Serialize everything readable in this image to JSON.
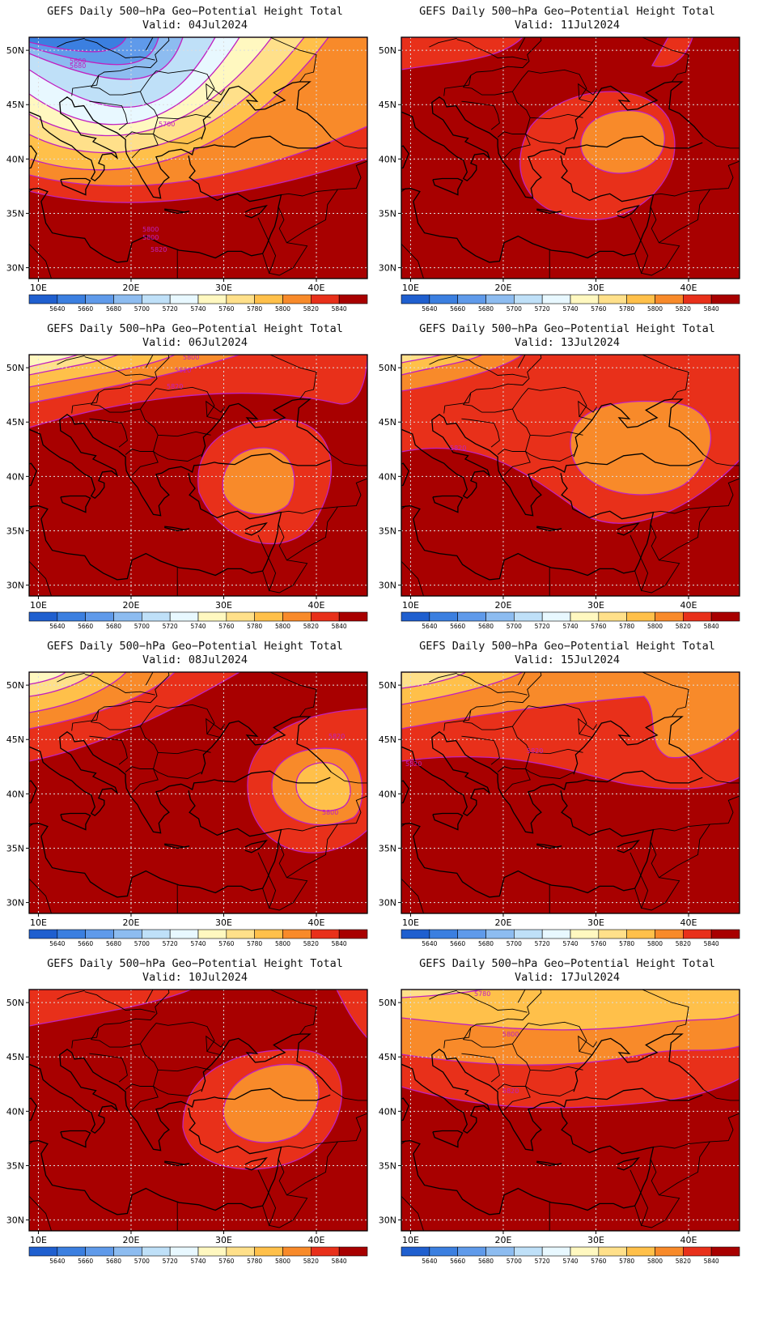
{
  "common": {
    "title": "GEFS Daily 500−hPa Geo−Potential Height Total",
    "lat_labels": [
      "50N",
      "45N",
      "40N",
      "35N",
      "30N"
    ],
    "lon_labels": [
      "10E",
      "20E",
      "30E",
      "40E"
    ],
    "colorbar": {
      "labels": [
        "5640",
        "5660",
        "5680",
        "5700",
        "5720",
        "5740",
        "5760",
        "5780",
        "5800",
        "5820",
        "5840"
      ],
      "colors": [
        "#1f5fcf",
        "#3b7fe0",
        "#5f9aea",
        "#8dbcf0",
        "#bfe0f8",
        "#e8f8ff",
        "#fff8c0",
        "#ffe08a",
        "#ffc04a",
        "#f88a2a",
        "#e8301a",
        "#a80000"
      ]
    },
    "contour_color": "#c020c0"
  },
  "panels": [
    {
      "valid": "Valid: 04Jul2024",
      "labels": [
        "5660",
        "5680",
        "5700",
        "5800",
        "5800",
        "5820"
      ]
    },
    {
      "valid": "Valid: 11Jul2024",
      "labels": []
    },
    {
      "valid": "Valid: 06Jul2024",
      "labels": [
        "5800",
        "5820",
        "5820"
      ]
    },
    {
      "valid": "Valid: 13Jul2024",
      "labels": [
        "5820"
      ]
    },
    {
      "valid": "Valid: 08Jul2024",
      "labels": [
        "5820",
        "5800"
      ]
    },
    {
      "valid": "Valid: 15Jul2024",
      "labels": [
        "5820",
        "5820"
      ]
    },
    {
      "valid": "Valid: 10Jul2024",
      "labels": []
    },
    {
      "valid": "Valid: 17Jul2024",
      "labels": [
        "5780",
        "5800",
        "5820"
      ]
    }
  ]
}
